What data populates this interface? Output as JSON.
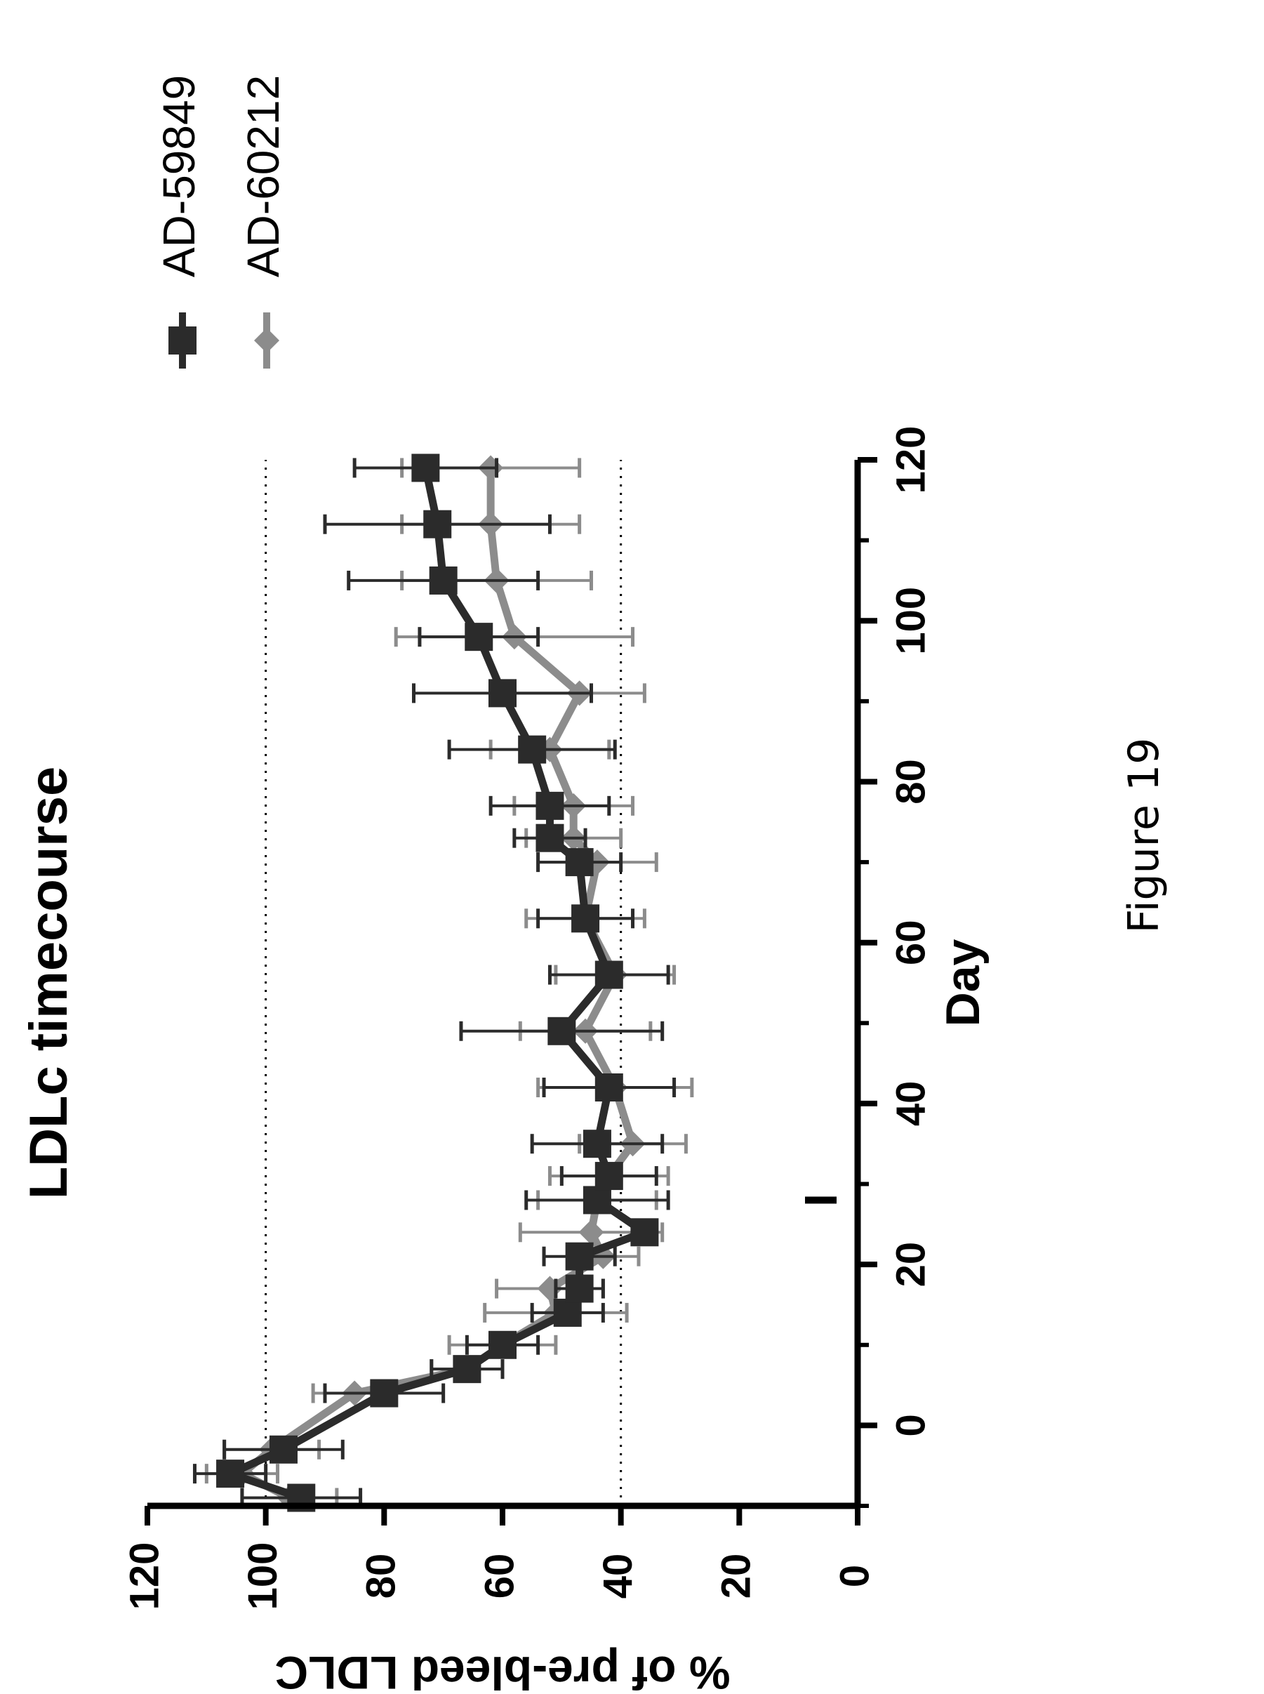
{
  "figure_caption": "Figure 19",
  "chart_data": {
    "type": "line",
    "title": "LDLc timecourse",
    "xlabel": "Day",
    "ylabel": "% of pre-bleed LDLC",
    "xlim": [
      -10,
      120
    ],
    "ylim": [
      0,
      120
    ],
    "x_ticks": [
      0,
      20,
      40,
      60,
      80,
      100,
      120
    ],
    "y_ticks": [
      0,
      20,
      40,
      60,
      80,
      100,
      120
    ],
    "reference_lines": [
      100,
      40
    ],
    "dose_marker_day": 28,
    "grid": false,
    "legend_position": "right",
    "orientation": "rotated 90 degrees counter-clockwise",
    "colors": {
      "AD-59849": "#2b2b2b",
      "AD-60212": "#8c8c8c",
      "axis": "#000000"
    },
    "series": [
      {
        "name": "AD-59849",
        "marker": "square",
        "x": [
          -9,
          -6,
          -3,
          4,
          7,
          10,
          14,
          17,
          21,
          24,
          28,
          31,
          35,
          42,
          49,
          56,
          63,
          70,
          73,
          77,
          84,
          91,
          98,
          105,
          112,
          119
        ],
        "y": [
          94,
          106,
          97,
          80,
          66,
          60,
          49,
          47,
          47,
          36,
          44,
          42,
          44,
          42,
          50,
          42,
          46,
          47,
          52,
          52,
          55,
          60,
          64,
          70,
          71,
          73
        ],
        "err": [
          10,
          6,
          10,
          10,
          6,
          6,
          6,
          4,
          6,
          2,
          12,
          8,
          11,
          11,
          17,
          10,
          8,
          7,
          6,
          10,
          14,
          15,
          10,
          16,
          19,
          12
        ]
      },
      {
        "name": "AD-60212",
        "marker": "diamond",
        "x": [
          -9,
          -6,
          -3,
          4,
          7,
          10,
          14,
          17,
          21,
          24,
          28,
          31,
          35,
          42,
          49,
          56,
          63,
          70,
          73,
          77,
          84,
          91,
          98,
          105,
          112,
          119
        ],
        "y": [
          96,
          104,
          99,
          85,
          66,
          60,
          51,
          52,
          43,
          45,
          44,
          42,
          38,
          41,
          46,
          41,
          46,
          44,
          48,
          48,
          52,
          47,
          58,
          61,
          62,
          62
        ],
        "err": [
          8,
          6,
          8,
          7,
          6,
          9,
          12,
          9,
          6,
          12,
          10,
          10,
          9,
          13,
          11,
          10,
          10,
          10,
          8,
          10,
          10,
          11,
          20,
          16,
          15,
          15
        ]
      }
    ]
  }
}
